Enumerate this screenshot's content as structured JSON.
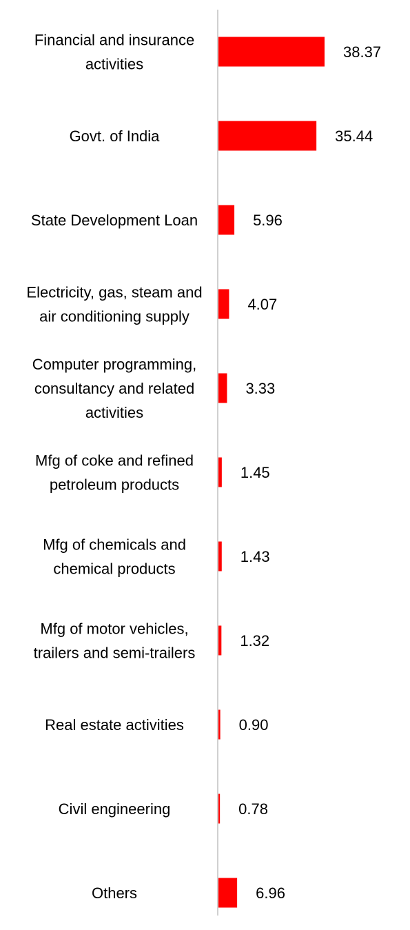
{
  "chart_data": {
    "type": "bar",
    "orientation": "horizontal",
    "categories": [
      "Financial and insurance activities",
      "Govt. of India",
      "State Development Loan",
      "Electricity, gas, steam and air conditioning supply",
      "Computer programming, consultancy and related activities",
      "Mfg of coke and refined petroleum products",
      "Mfg of chemicals and chemical products",
      "Mfg of motor vehicles, trailers and semi-trailers",
      "Real estate activities",
      "Civil engineering",
      "Others"
    ],
    "category_lines": [
      [
        "Financial and insurance",
        "activities"
      ],
      [
        "Govt. of India"
      ],
      [
        "State Development Loan"
      ],
      [
        "Electricity, gas, steam and",
        "air conditioning supply"
      ],
      [
        "Computer programming,",
        "consultancy and related",
        "activities"
      ],
      [
        "Mfg of coke and refined",
        "petroleum products"
      ],
      [
        "Mfg of chemicals and",
        "chemical products"
      ],
      [
        "Mfg of motor vehicles,",
        "trailers and semi-trailers"
      ],
      [
        "Real estate activities"
      ],
      [
        "Civil engineering"
      ],
      [
        "Others"
      ]
    ],
    "values": [
      38.37,
      35.44,
      5.96,
      4.07,
      3.33,
      1.45,
      1.43,
      1.32,
      0.9,
      0.78,
      6.96
    ],
    "value_labels": [
      "38.37",
      "35.44",
      "5.96",
      "4.07",
      "3.33",
      "1.45",
      "1.43",
      "1.32",
      "0.90",
      "0.78",
      "6.96"
    ],
    "title": "",
    "xlabel": "",
    "ylabel": "",
    "grid": false,
    "legend": "none",
    "bar_color": "#ff0000",
    "axis_color": "#d0d0d0"
  }
}
